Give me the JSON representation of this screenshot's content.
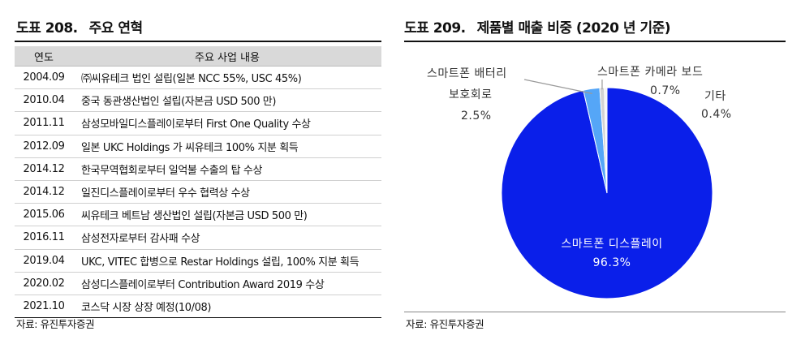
{
  "left": {
    "title_num": "도표 208.",
    "title_text": "주요 연혁",
    "header": {
      "year": "연도",
      "event": "주요 사업 내용"
    },
    "rows": [
      {
        "year": "2004.09",
        "event": "㈜씨유테크 법인 설립(일본 NCC 55%, USC 45%)"
      },
      {
        "year": "2010.04",
        "event": "중국 동관생산법인 설립(자본금 USD 500 만)"
      },
      {
        "year": "2011.11",
        "event": "삼성모바일디스플레이로부터 First One Quality 수상"
      },
      {
        "year": "2012.09",
        "event": "일본 UKC Holdings 가 씨유테크 100% 지분 획득"
      },
      {
        "year": "2014.12",
        "event": "한국무역협회로부터 일억불 수출의 탑 수상"
      },
      {
        "year": "2014.12",
        "event": "일진디스플레이로부터 우수 협력상 수상"
      },
      {
        "year": "2015.06",
        "event": "씨유테크 베트남 생산법인 설립(자본금 USD 500 만)"
      },
      {
        "year": "2016.11",
        "event": "삼성전자로부터 감사패 수상"
      },
      {
        "year": "2019.04",
        "event": "UKC, VITEC 합병으로 Restar Holdings 설립, 100% 지분 획득"
      },
      {
        "year": "2020.02",
        "event": "삼성디스플레이로부터 Contribution Award 2019 수상"
      },
      {
        "year": "2021.10",
        "event": "코스닥 시장 상장 예정(10/08)"
      }
    ],
    "source": "자료: 유진투자증권"
  },
  "right": {
    "title_num": "도표 209.",
    "title_text": "제품별 매출 비중 (2020 년 기준)",
    "source": "자료: 유진투자증권"
  },
  "chart_data": {
    "type": "pie",
    "title": "제품별 매출 비중 (2020 년 기준)",
    "slices": [
      {
        "label": "스마트폰 디스플레이",
        "value": 96.3,
        "value_label": "96.3%",
        "color": "#0a1fea"
      },
      {
        "label_line1": "스마트폰 배터리",
        "label_line2": "보호회로",
        "value": 2.5,
        "value_label": "2.5%",
        "color": "#55a6f7"
      },
      {
        "label": "스마트폰 카메라 보드",
        "value": 0.7,
        "value_label": "0.7%",
        "color": "#d2d2d2"
      },
      {
        "label": "기타",
        "value": 0.4,
        "value_label": "0.4%",
        "color": "#f2f2f2"
      }
    ]
  }
}
